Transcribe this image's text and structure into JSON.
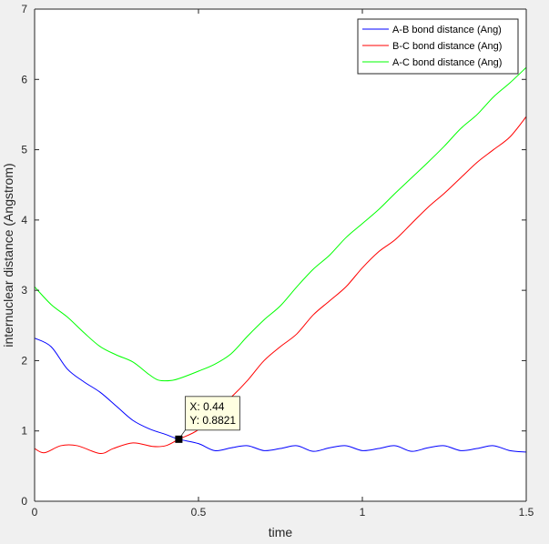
{
  "chart_data": {
    "type": "line",
    "xlabel": "time",
    "ylabel": "internuclear distance (Angstrom)",
    "xlim": [
      0,
      1.5
    ],
    "ylim": [
      0,
      7
    ],
    "xticks": [
      0,
      0.5,
      1,
      1.5
    ],
    "xtick_labels": [
      "0",
      "0.5",
      "1",
      "1.5"
    ],
    "yticks": [
      0,
      1,
      2,
      3,
      4,
      5,
      6,
      7
    ],
    "ytick_labels": [
      "0",
      "1",
      "2",
      "3",
      "4",
      "5",
      "6",
      "7"
    ],
    "grid": false,
    "legend_position": "top-right",
    "series": [
      {
        "name": "A-B bond distance (Ang)",
        "color": "#0000ff",
        "x": [
          0,
          0.05,
          0.1,
          0.15,
          0.2,
          0.25,
          0.3,
          0.35,
          0.4,
          0.44,
          0.5,
          0.55,
          0.6,
          0.65,
          0.7,
          0.75,
          0.8,
          0.85,
          0.9,
          0.95,
          1.0,
          1.05,
          1.1,
          1.15,
          1.2,
          1.25,
          1.3,
          1.35,
          1.4,
          1.45,
          1.5
        ],
        "values": [
          2.32,
          2.2,
          1.88,
          1.7,
          1.55,
          1.35,
          1.15,
          1.03,
          0.95,
          0.882,
          0.82,
          0.72,
          0.76,
          0.79,
          0.72,
          0.75,
          0.79,
          0.71,
          0.76,
          0.79,
          0.72,
          0.75,
          0.79,
          0.71,
          0.76,
          0.79,
          0.72,
          0.75,
          0.79,
          0.72,
          0.7
        ]
      },
      {
        "name": "B-C bond distance (Ang)",
        "color": "#ff0000",
        "x": [
          0,
          0.03,
          0.08,
          0.13,
          0.2,
          0.24,
          0.3,
          0.36,
          0.4,
          0.44,
          0.5,
          0.55,
          0.6,
          0.65,
          0.7,
          0.75,
          0.8,
          0.85,
          0.9,
          0.95,
          1.0,
          1.05,
          1.1,
          1.15,
          1.2,
          1.25,
          1.3,
          1.35,
          1.4,
          1.45,
          1.5
        ],
        "values": [
          0.75,
          0.69,
          0.79,
          0.79,
          0.68,
          0.75,
          0.83,
          0.78,
          0.79,
          0.882,
          1.02,
          1.28,
          1.48,
          1.72,
          2.0,
          2.2,
          2.38,
          2.65,
          2.85,
          3.05,
          3.32,
          3.55,
          3.72,
          3.95,
          4.18,
          4.38,
          4.6,
          4.82,
          5.0,
          5.18,
          5.47
        ]
      },
      {
        "name": "A-C bond distance (Ang)",
        "color": "#00ff00",
        "x": [
          0,
          0.05,
          0.1,
          0.15,
          0.2,
          0.25,
          0.3,
          0.35,
          0.38,
          0.42,
          0.45,
          0.5,
          0.55,
          0.6,
          0.65,
          0.7,
          0.75,
          0.8,
          0.85,
          0.9,
          0.95,
          1.0,
          1.05,
          1.1,
          1.15,
          1.2,
          1.25,
          1.3,
          1.35,
          1.4,
          1.45,
          1.5
        ],
        "values": [
          3.05,
          2.8,
          2.62,
          2.4,
          2.2,
          2.08,
          1.98,
          1.8,
          1.72,
          1.72,
          1.76,
          1.85,
          1.95,
          2.1,
          2.35,
          2.58,
          2.78,
          3.05,
          3.3,
          3.5,
          3.75,
          3.95,
          4.15,
          4.38,
          4.6,
          4.82,
          5.05,
          5.3,
          5.5,
          5.75,
          5.95,
          6.17
        ]
      }
    ],
    "datatip": {
      "x": 0.44,
      "y": 0.8821,
      "x_text": "X: 0.44",
      "y_text": "Y: 0.8821"
    }
  }
}
